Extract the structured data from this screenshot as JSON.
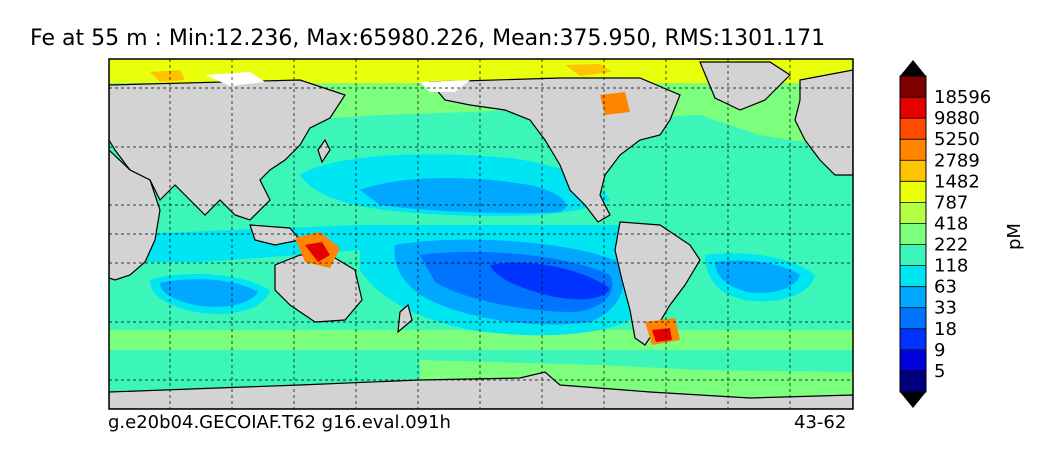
{
  "title": "Fe at 55 m : Min:12.236, Max:65980.226, Mean:375.950, RMS:1301.171",
  "footer": {
    "run_name": "g.e20b04.GECOIAF.T62 g16.eval.091h",
    "years": "43-62"
  },
  "colorbar": {
    "unit": "pM",
    "ticks": [
      "5",
      "9",
      "18",
      "33",
      "63",
      "118",
      "222",
      "418",
      "787",
      "1482",
      "2789",
      "5250",
      "9880",
      "18596"
    ],
    "colors": [
      "#00007f",
      "#0000d9",
      "#0033ff",
      "#0073ff",
      "#00a9ff",
      "#00e5f2",
      "#3cf5b9",
      "#7cff7c",
      "#b3ff46",
      "#eaff0c",
      "#ffc400",
      "#ff8400",
      "#ff4a00",
      "#e50000",
      "#7f0000"
    ],
    "extend": "both"
  },
  "map": {
    "land_color": "#d3d3d3",
    "nodata_color": "#ffffff",
    "gridlines": "dashed"
  }
}
